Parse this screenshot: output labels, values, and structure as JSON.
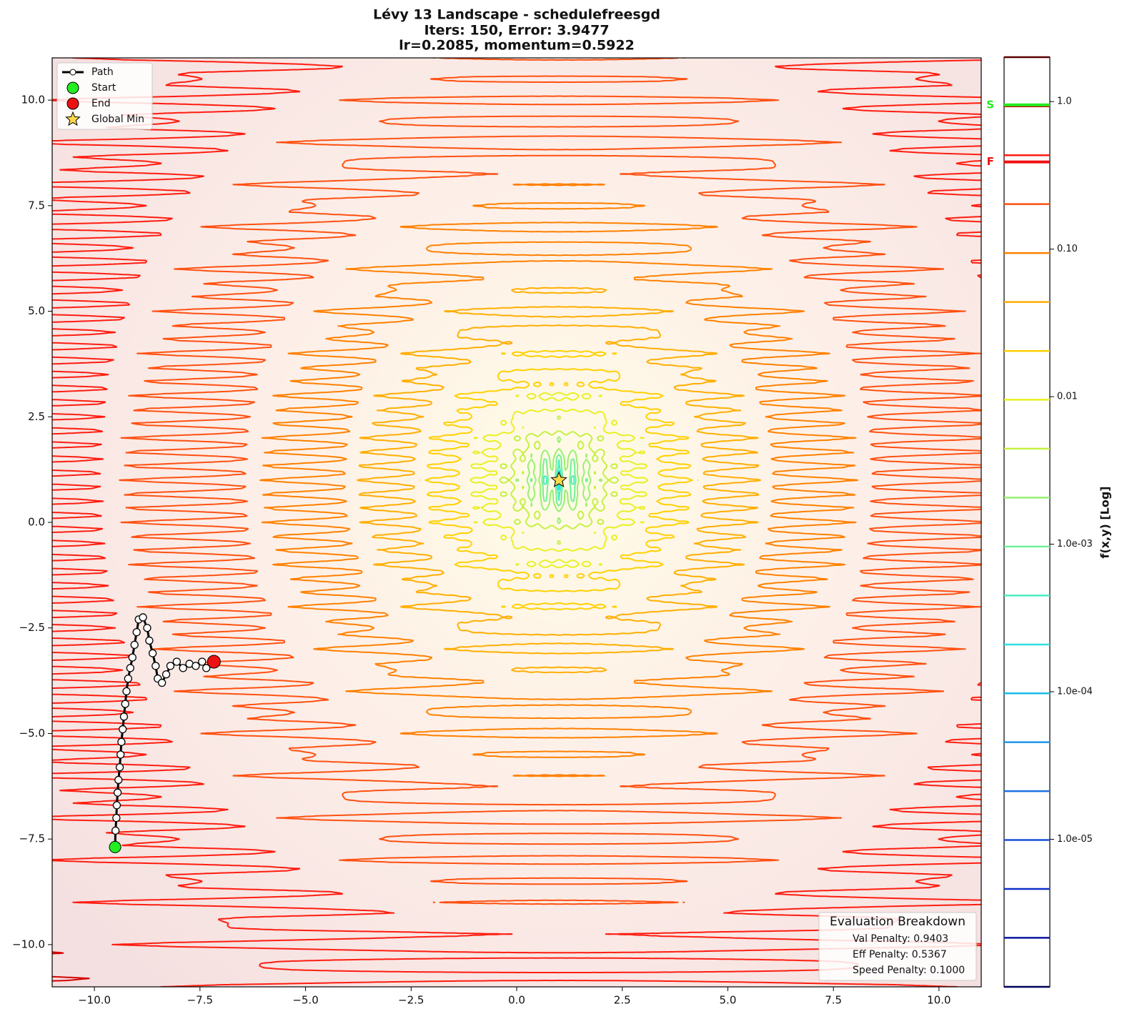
{
  "chart_data": {
    "type": "contour",
    "title": [
      "Lévy 13 Landscape - schedulefreesgd",
      "Iters: 150, Error: 3.9477",
      "lr=0.2085, momentum=0.5922"
    ],
    "xlim": [
      -11,
      11
    ],
    "ylim": [
      -11,
      11
    ],
    "xticks": [
      {
        "value": -10,
        "label": "−10.0"
      },
      {
        "value": -7.5,
        "label": "−7.5"
      },
      {
        "value": -5,
        "label": "−5.0"
      },
      {
        "value": -2.5,
        "label": "−2.5"
      },
      {
        "value": 0,
        "label": "0.0"
      },
      {
        "value": 2.5,
        "label": "2.5"
      },
      {
        "value": 5,
        "label": "5.0"
      },
      {
        "value": 7.5,
        "label": "7.5"
      },
      {
        "value": 10,
        "label": "10.0"
      }
    ],
    "yticks": [
      {
        "value": -10,
        "label": "−10.0"
      },
      {
        "value": -7.5,
        "label": "−7.5"
      },
      {
        "value": -5,
        "label": "−5.0"
      },
      {
        "value": -2.5,
        "label": "−2.5"
      },
      {
        "value": 0,
        "label": "0.0"
      },
      {
        "value": 2.5,
        "label": "2.5"
      },
      {
        "value": 5,
        "label": "5.0"
      },
      {
        "value": 7.5,
        "label": "7.5"
      },
      {
        "value": 10,
        "label": "10.0"
      }
    ],
    "levels": [
      1e-06,
      2.15e-06,
      4.61e-06,
      9.89e-06,
      2.12e-05,
      4.55e-05,
      9.76e-05,
      0.000209,
      0.000449,
      0.000964,
      0.00207,
      0.00444,
      0.00953,
      0.0204,
      0.0438,
      0.0941,
      0.202,
      0.433,
      0.929,
      2
    ],
    "level_colors": [
      "#00005a",
      "#0a14a0",
      "#1030c8",
      "#1850d8",
      "#1e70e0",
      "#1c96e6",
      "#18bce8",
      "#30e0e0",
      "#48ecc0",
      "#70f098",
      "#98f070",
      "#c4f040",
      "#e8f020",
      "#ffd000",
      "#ffae00",
      "#ff8000",
      "#ff5010",
      "#ff1c10",
      "#d40000",
      "#5a0000"
    ],
    "legend": "upper left",
    "path": {
      "name": "Path",
      "color": "#000000",
      "x": [
        -9.51,
        -9.5,
        -9.48,
        -9.47,
        -9.45,
        -9.43,
        -9.4,
        -9.38,
        -9.36,
        -9.33,
        -9.3,
        -9.27,
        -9.24,
        -9.2,
        -9.15,
        -9.1,
        -9.05,
        -9.0,
        -8.95,
        -8.85,
        -8.75,
        -8.7,
        -8.62,
        -8.55,
        -8.5,
        -8.4,
        -8.3,
        -8.2,
        -8.05,
        -7.9,
        -7.75,
        -7.6,
        -7.45,
        -7.35,
        -7.17
      ],
      "y": [
        -7.69,
        -7.3,
        -7.0,
        -6.7,
        -6.4,
        -6.1,
        -5.8,
        -5.5,
        -5.2,
        -4.9,
        -4.6,
        -4.3,
        -4.0,
        -3.7,
        -3.45,
        -3.2,
        -2.9,
        -2.6,
        -2.3,
        -2.25,
        -2.5,
        -2.8,
        -3.1,
        -3.4,
        -3.7,
        -3.8,
        -3.6,
        -3.4,
        -3.3,
        -3.45,
        -3.35,
        -3.4,
        -3.3,
        -3.45,
        -3.3
      ]
    },
    "start": {
      "name": "Start",
      "x": -9.51,
      "y": -7.69,
      "color": "#22ee22"
    },
    "end": {
      "name": "End",
      "x": -7.17,
      "y": -3.3,
      "color": "#ee1111"
    },
    "global_min": {
      "name": "Global Min",
      "x": 1,
      "y": 1,
      "color": "#ffd84a"
    },
    "colorbar": {
      "label": "f(x,y) [Log]",
      "scale": "log",
      "lim": [
        1e-06,
        2
      ],
      "ticks": [
        {
          "value": 1,
          "label": "1.0"
        },
        {
          "value": 0.1,
          "label": "0.10"
        },
        {
          "value": 0.01,
          "label": "0.01"
        },
        {
          "value": 0.001,
          "label": "1.0e-03"
        },
        {
          "value": 0.0001,
          "label": "1.0e-04"
        },
        {
          "value": 1e-05,
          "label": "1.0e-05"
        }
      ],
      "markers": [
        {
          "label": "S",
          "value": 0.95,
          "color": "#22ee22"
        },
        {
          "label": "F",
          "value": 0.39,
          "color": "#ee1111"
        }
      ]
    },
    "breakdown": {
      "title": "Evaluation Breakdown",
      "lines": [
        "Val Penalty: 0.9403",
        "Eff Penalty: 0.5367",
        "Speed Penalty: 0.1000"
      ]
    }
  }
}
